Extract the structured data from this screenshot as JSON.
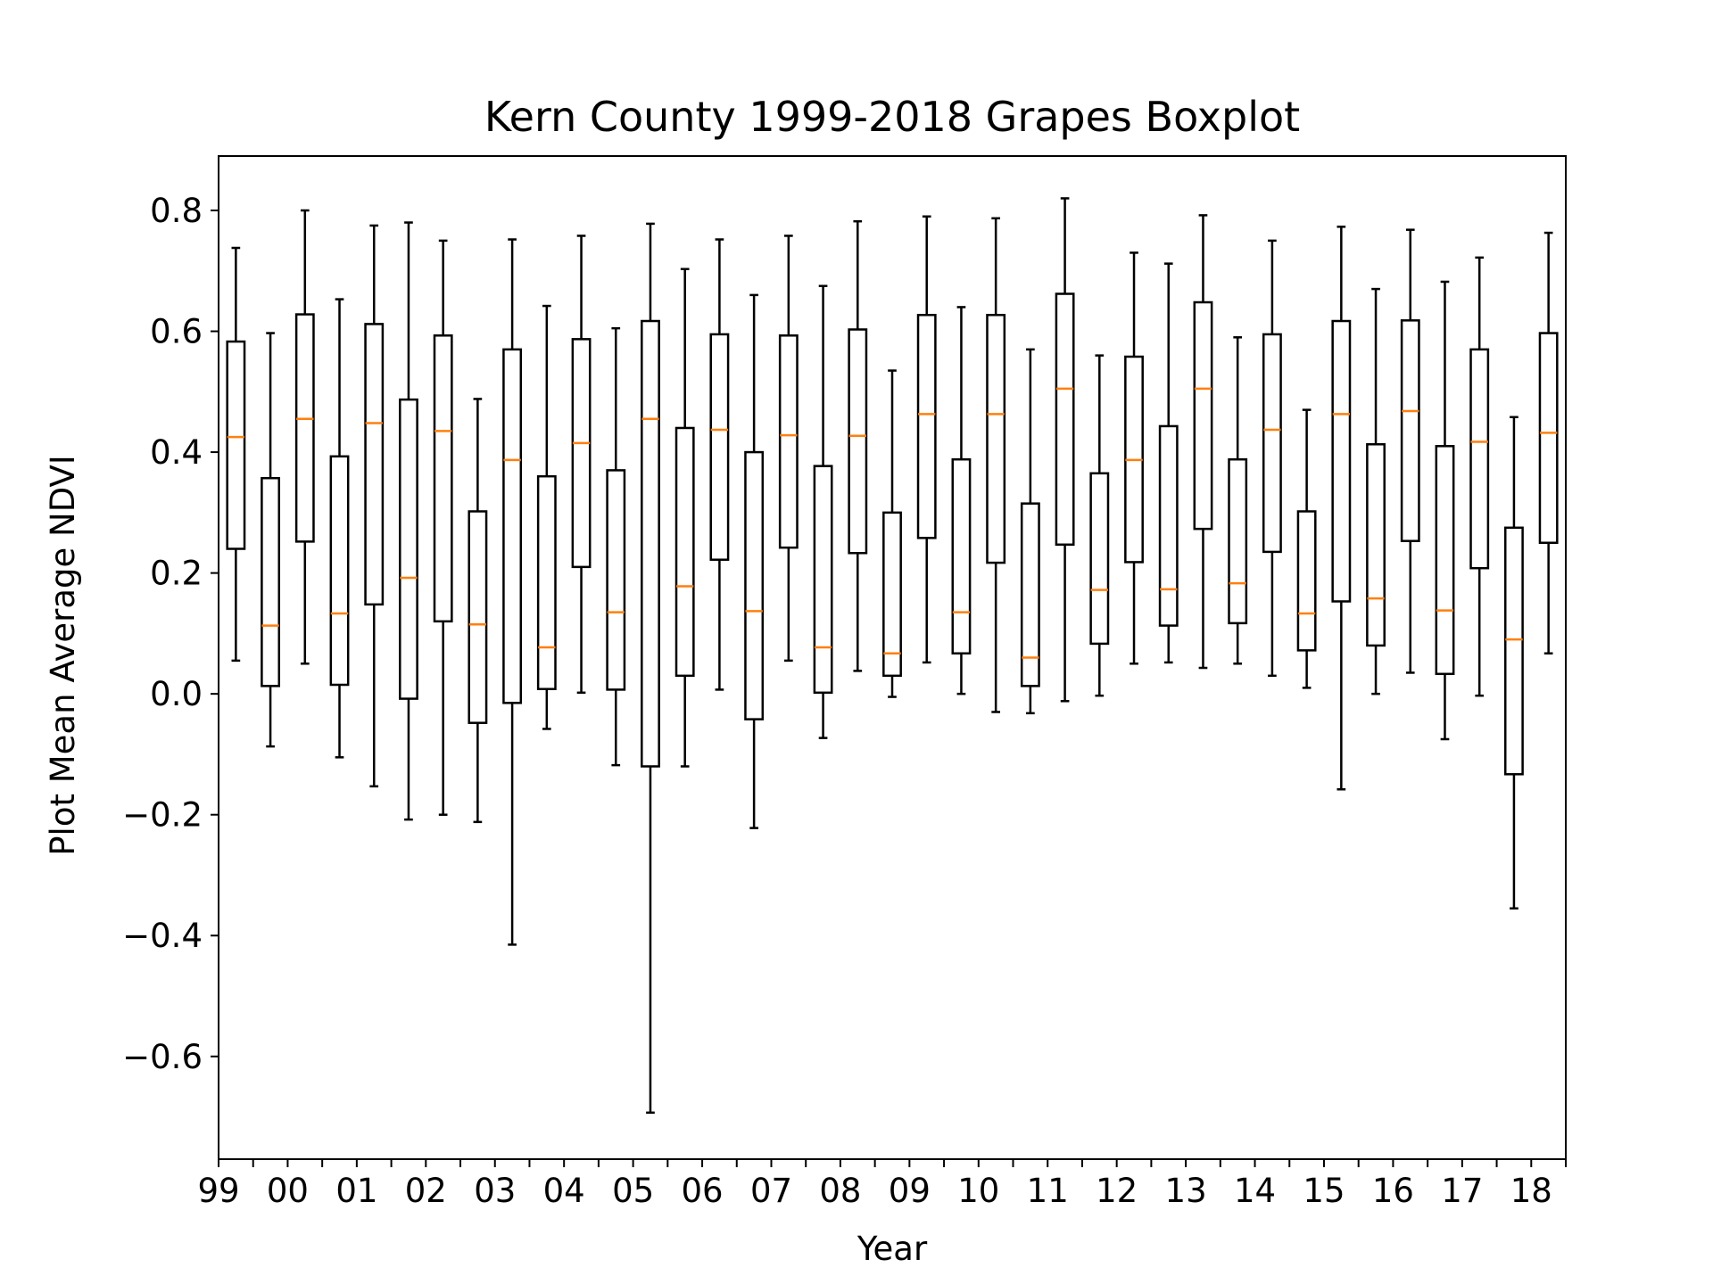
{
  "chart_data": {
    "type": "boxplot",
    "title": "Kern County 1999-2018 Grapes Boxplot",
    "xlabel": "Year",
    "ylabel": "Plot Mean Average NDVI",
    "ylim": [
      -0.77,
      0.89
    ],
    "y_ticks": [
      {
        "value": 0.8,
        "label": "0.8"
      },
      {
        "value": 0.6,
        "label": "0.6"
      },
      {
        "value": 0.4,
        "label": "0.4"
      },
      {
        "value": 0.2,
        "label": "0.2"
      },
      {
        "value": 0.0,
        "label": "0.0"
      },
      {
        "value": -0.2,
        "label": "−0.2"
      },
      {
        "value": -0.4,
        "label": "−0.4"
      },
      {
        "value": -0.6,
        "label": "−0.6"
      }
    ],
    "x_tick_labels": [
      "99",
      "00",
      "01",
      "02",
      "03",
      "04",
      "05",
      "06",
      "07",
      "08",
      "09",
      "10",
      "11",
      "12",
      "13",
      "14",
      "15",
      "16",
      "17",
      "18"
    ],
    "box_colors": {
      "box": "#000000",
      "median": "#ff7f0e"
    },
    "boxes": [
      {
        "whislo": 0.055,
        "q1": 0.24,
        "med": 0.425,
        "q3": 0.583,
        "whishi": 0.738
      },
      {
        "whislo": -0.087,
        "q1": 0.013,
        "med": 0.113,
        "q3": 0.357,
        "whishi": 0.597
      },
      {
        "whislo": 0.05,
        "q1": 0.252,
        "med": 0.455,
        "q3": 0.628,
        "whishi": 0.8
      },
      {
        "whislo": -0.105,
        "q1": 0.015,
        "med": 0.133,
        "q3": 0.393,
        "whishi": 0.653
      },
      {
        "whislo": -0.153,
        "q1": 0.148,
        "med": 0.448,
        "q3": 0.612,
        "whishi": 0.775
      },
      {
        "whislo": -0.208,
        "q1": -0.008,
        "med": 0.192,
        "q3": 0.487,
        "whishi": 0.78
      },
      {
        "whislo": -0.2,
        "q1": 0.12,
        "med": 0.435,
        "q3": 0.593,
        "whishi": 0.75
      },
      {
        "whislo": -0.212,
        "q1": -0.048,
        "med": 0.115,
        "q3": 0.302,
        "whishi": 0.488
      },
      {
        "whislo": -0.415,
        "q1": -0.015,
        "med": 0.387,
        "q3": 0.57,
        "whishi": 0.752
      },
      {
        "whislo": -0.058,
        "q1": 0.008,
        "med": 0.077,
        "q3": 0.36,
        "whishi": 0.642
      },
      {
        "whislo": 0.002,
        "q1": 0.21,
        "med": 0.415,
        "q3": 0.587,
        "whishi": 0.758
      },
      {
        "whislo": -0.118,
        "q1": 0.007,
        "med": 0.135,
        "q3": 0.37,
        "whishi": 0.605
      },
      {
        "whislo": -0.693,
        "q1": -0.12,
        "med": 0.455,
        "q3": 0.617,
        "whishi": 0.778
      },
      {
        "whislo": -0.12,
        "q1": 0.03,
        "med": 0.178,
        "q3": 0.44,
        "whishi": 0.703
      },
      {
        "whislo": 0.007,
        "q1": 0.222,
        "med": 0.437,
        "q3": 0.595,
        "whishi": 0.752
      },
      {
        "whislo": -0.222,
        "q1": -0.042,
        "med": 0.137,
        "q3": 0.4,
        "whishi": 0.66
      },
      {
        "whislo": 0.055,
        "q1": 0.242,
        "med": 0.428,
        "q3": 0.593,
        "whishi": 0.758
      },
      {
        "whislo": -0.073,
        "q1": 0.002,
        "med": 0.077,
        "q3": 0.377,
        "whishi": 0.675
      },
      {
        "whislo": 0.038,
        "q1": 0.233,
        "med": 0.427,
        "q3": 0.603,
        "whishi": 0.782
      },
      {
        "whislo": -0.005,
        "q1": 0.03,
        "med": 0.067,
        "q3": 0.3,
        "whishi": 0.535
      },
      {
        "whislo": 0.052,
        "q1": 0.258,
        "med": 0.463,
        "q3": 0.627,
        "whishi": 0.79
      },
      {
        "whislo": 0.0,
        "q1": 0.067,
        "med": 0.135,
        "q3": 0.388,
        "whishi": 0.64
      },
      {
        "whislo": -0.03,
        "q1": 0.217,
        "med": 0.463,
        "q3": 0.627,
        "whishi": 0.787
      },
      {
        "whislo": -0.032,
        "q1": 0.013,
        "med": 0.06,
        "q3": 0.315,
        "whishi": 0.57
      },
      {
        "whislo": -0.012,
        "q1": 0.247,
        "med": 0.505,
        "q3": 0.662,
        "whishi": 0.82
      },
      {
        "whislo": -0.003,
        "q1": 0.083,
        "med": 0.172,
        "q3": 0.365,
        "whishi": 0.56
      },
      {
        "whislo": 0.05,
        "q1": 0.218,
        "med": 0.387,
        "q3": 0.558,
        "whishi": 0.73
      },
      {
        "whislo": 0.052,
        "q1": 0.113,
        "med": 0.173,
        "q3": 0.443,
        "whishi": 0.712
      },
      {
        "whislo": 0.043,
        "q1": 0.273,
        "med": 0.505,
        "q3": 0.648,
        "whishi": 0.792
      },
      {
        "whislo": 0.05,
        "q1": 0.117,
        "med": 0.183,
        "q3": 0.388,
        "whishi": 0.59
      },
      {
        "whislo": 0.03,
        "q1": 0.235,
        "med": 0.437,
        "q3": 0.595,
        "whishi": 0.75
      },
      {
        "whislo": 0.01,
        "q1": 0.072,
        "med": 0.133,
        "q3": 0.302,
        "whishi": 0.47
      },
      {
        "whislo": -0.158,
        "q1": 0.153,
        "med": 0.463,
        "q3": 0.617,
        "whishi": 0.773
      },
      {
        "whislo": 0.0,
        "q1": 0.08,
        "med": 0.158,
        "q3": 0.413,
        "whishi": 0.67
      },
      {
        "whislo": 0.035,
        "q1": 0.253,
        "med": 0.468,
        "q3": 0.618,
        "whishi": 0.768
      },
      {
        "whislo": -0.075,
        "q1": 0.033,
        "med": 0.138,
        "q3": 0.41,
        "whishi": 0.682
      },
      {
        "whislo": -0.003,
        "q1": 0.208,
        "med": 0.417,
        "q3": 0.57,
        "whishi": 0.722
      },
      {
        "whislo": -0.355,
        "q1": -0.133,
        "med": 0.09,
        "q3": 0.275,
        "whishi": 0.458
      },
      {
        "whislo": 0.067,
        "q1": 0.25,
        "med": 0.432,
        "q3": 0.597,
        "whishi": 0.763
      }
    ]
  }
}
